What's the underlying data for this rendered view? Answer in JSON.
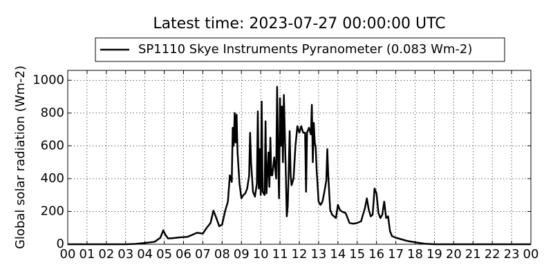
{
  "chart_data": {
    "type": "line",
    "title": "Latest time: 2023-07-27 00:00:00 UTC",
    "y_label": "Global solar radiation (Wm-2)",
    "x": [
      0,
      3,
      3.5,
      4,
      4.5,
      4.8,
      4.95,
      5.05,
      5.2,
      5.5,
      5.8,
      6.2,
      6.5,
      6.7,
      7,
      7.2,
      7.4,
      7.55,
      7.7,
      7.85,
      8,
      8.15,
      8.3,
      8.4,
      8.5,
      8.55,
      8.6,
      8.65,
      8.7,
      8.75,
      8.8,
      8.9,
      9,
      9.1,
      9.2,
      9.3,
      9.4,
      9.45,
      9.5,
      9.6,
      9.7,
      9.8,
      9.85,
      9.9,
      9.95,
      10,
      10.05,
      10.1,
      10.2,
      10.25,
      10.3,
      10.4,
      10.45,
      10.5,
      10.55,
      10.6,
      10.7,
      10.8,
      10.85,
      10.9,
      10.95,
      11,
      11.05,
      11.1,
      11.15,
      11.2,
      11.3,
      11.35,
      11.4,
      11.45,
      11.5,
      11.55,
      11.6,
      11.7,
      11.8,
      11.9,
      12,
      12.1,
      12.2,
      12.3,
      12.35,
      12.4,
      12.5,
      12.6,
      12.65,
      12.7,
      12.75,
      12.8,
      12.85,
      12.9,
      13,
      13.1,
      13.2,
      13.3,
      13.4,
      13.45,
      13.5,
      13.6,
      13.7,
      13.8,
      13.9,
      14,
      14.1,
      14.2,
      14.4,
      14.6,
      14.8,
      15,
      15.2,
      15.4,
      15.5,
      15.6,
      15.7,
      15.8,
      15.9,
      16,
      16.1,
      16.2,
      16.3,
      16.4,
      16.5,
      16.6,
      16.7,
      16.8,
      17,
      17.3,
      17.6,
      18,
      18.5,
      19,
      24
    ],
    "series": [
      {
        "name": "SP1110 Skye Instruments Pyranometer (0.083 Wm-2)",
        "color": "#000000",
        "values": [
          0,
          0,
          2,
          8,
          15,
          40,
          85,
          60,
          35,
          38,
          42,
          45,
          60,
          70,
          65,
          100,
          130,
          205,
          160,
          110,
          120,
          200,
          260,
          420,
          380,
          710,
          600,
          800,
          620,
          790,
          560,
          370,
          280,
          300,
          310,
          340,
          420,
          680,
          500,
          320,
          290,
          370,
          810,
          340,
          580,
          300,
          870,
          320,
          300,
          750,
          310,
          560,
          350,
          650,
          420,
          420,
          530,
          400,
          960,
          540,
          280,
          890,
          600,
          840,
          500,
          910,
          440,
          170,
          230,
          450,
          690,
          420,
          360,
          400,
          600,
          720,
          680,
          720,
          680,
          680,
          320,
          680,
          710,
          670,
          850,
          500,
          740,
          620,
          590,
          450,
          260,
          240,
          260,
          320,
          390,
          580,
          420,
          210,
          180,
          170,
          160,
          240,
          210,
          200,
          190,
          130,
          125,
          130,
          140,
          220,
          280,
          210,
          170,
          180,
          340,
          310,
          190,
          160,
          180,
          260,
          160,
          170,
          80,
          50,
          40,
          30,
          20,
          12,
          3,
          0,
          0
        ]
      }
    ],
    "xlim": [
      0,
      24
    ],
    "ylim": [
      0,
      1060
    ],
    "xticks": [
      {
        "value": 0,
        "label": "00"
      },
      {
        "value": 1,
        "label": "01"
      },
      {
        "value": 2,
        "label": "02"
      },
      {
        "value": 3,
        "label": "03"
      },
      {
        "value": 4,
        "label": "04"
      },
      {
        "value": 5,
        "label": "05"
      },
      {
        "value": 6,
        "label": "06"
      },
      {
        "value": 7,
        "label": "07"
      },
      {
        "value": 8,
        "label": "08"
      },
      {
        "value": 9,
        "label": "09"
      },
      {
        "value": 10,
        "label": "10"
      },
      {
        "value": 11,
        "label": "11"
      },
      {
        "value": 12,
        "label": "12"
      },
      {
        "value": 13,
        "label": "13"
      },
      {
        "value": 14,
        "label": "14"
      },
      {
        "value": 15,
        "label": "15"
      },
      {
        "value": 16,
        "label": "16"
      },
      {
        "value": 17,
        "label": "17"
      },
      {
        "value": 18,
        "label": "18"
      },
      {
        "value": 19,
        "label": "19"
      },
      {
        "value": 20,
        "label": "20"
      },
      {
        "value": 21,
        "label": "21"
      },
      {
        "value": 22,
        "label": "22"
      },
      {
        "value": 23,
        "label": "23"
      },
      {
        "value": 24,
        "label": "00"
      }
    ],
    "yticks": [
      0,
      200,
      400,
      600,
      800,
      1000
    ],
    "grid": true,
    "legend": "top"
  }
}
